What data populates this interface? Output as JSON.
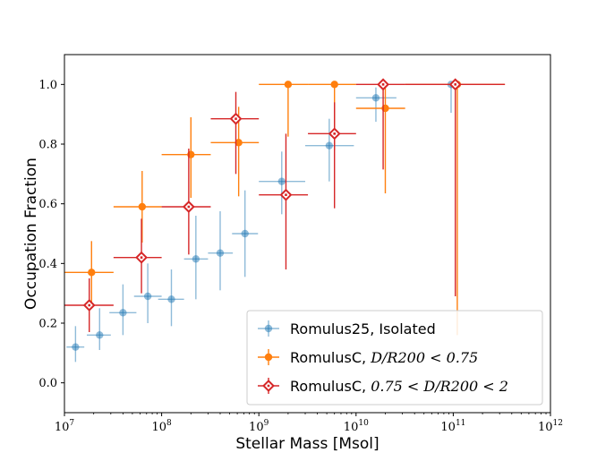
{
  "chart_data": {
    "type": "scatter",
    "title": "",
    "xlabel": "Stellar Mass [Msol]",
    "ylabel": "Occupation Fraction",
    "xscale": "log",
    "xlim": [
      10000000,
      1000000000000
    ],
    "ylim": [
      -0.1,
      1.1
    ],
    "x_ticks": [
      {
        "base": "10",
        "exp": "7",
        "value": 10000000
      },
      {
        "base": "10",
        "exp": "8",
        "value": 100000000
      },
      {
        "base": "10",
        "exp": "9",
        "value": 1000000000
      },
      {
        "base": "10",
        "exp": "10",
        "value": 10000000000
      },
      {
        "base": "10",
        "exp": "11",
        "value": 100000000000
      },
      {
        "base": "10",
        "exp": "12",
        "value": 1000000000000
      }
    ],
    "y_ticks": [
      {
        "label": "0.0",
        "value": 0.0
      },
      {
        "label": "0.2",
        "value": 0.2
      },
      {
        "label": "0.4",
        "value": 0.4
      },
      {
        "label": "0.6",
        "value": 0.6
      },
      {
        "label": "0.8",
        "value": 0.8
      },
      {
        "label": "1.0",
        "value": 1.0
      }
    ],
    "legend_position": "lower-right",
    "series": [
      {
        "name": "Romulus25, Isolated",
        "legend_text": "Romulus25, Isolated",
        "legend_math": "",
        "color": "#1f77b4",
        "marker": "circle",
        "marker_alpha": 0.5,
        "points": [
          {
            "x": 13000000,
            "y": 0.12,
            "xlo": 10500000,
            "xhi": 16000000,
            "ylo": 0.07,
            "yhi": 0.19
          },
          {
            "x": 23000000,
            "y": 0.16,
            "xlo": 17000000,
            "xhi": 30000000,
            "ylo": 0.11,
            "yhi": 0.25
          },
          {
            "x": 40000000,
            "y": 0.235,
            "xlo": 29000000,
            "xhi": 55000000,
            "ylo": 0.16,
            "yhi": 0.33
          },
          {
            "x": 72000000,
            "y": 0.29,
            "xlo": 52000000,
            "xhi": 100000000,
            "ylo": 0.2,
            "yhi": 0.4
          },
          {
            "x": 126000000,
            "y": 0.28,
            "xlo": 92000000,
            "xhi": 170000000,
            "ylo": 0.19,
            "yhi": 0.38
          },
          {
            "x": 225000000,
            "y": 0.415,
            "xlo": 170000000,
            "xhi": 300000000,
            "ylo": 0.28,
            "yhi": 0.56
          },
          {
            "x": 400000000,
            "y": 0.435,
            "xlo": 300000000,
            "xhi": 540000000,
            "ylo": 0.31,
            "yhi": 0.575
          },
          {
            "x": 720000000,
            "y": 0.5,
            "xlo": 530000000,
            "xhi": 980000000,
            "ylo": 0.355,
            "yhi": 0.645
          },
          {
            "x": 1720000000,
            "y": 0.675,
            "xlo": 1000000000,
            "xhi": 3000000000,
            "ylo": 0.565,
            "yhi": 0.775
          },
          {
            "x": 5300000000,
            "y": 0.795,
            "xlo": 3000000000,
            "xhi": 9500000000,
            "ylo": 0.675,
            "yhi": 0.885
          },
          {
            "x": 16000000000,
            "y": 0.955,
            "xlo": 10000000000,
            "xhi": 26000000000,
            "ylo": 0.875,
            "yhi": 0.99
          },
          {
            "x": 95000000000,
            "y": 1.0,
            "xlo": 90000000000,
            "xhi": 100000000000,
            "ylo": 0.905,
            "yhi": 1.0
          }
        ]
      },
      {
        "name": "RomulusC, D/R200 < 0.75",
        "legend_text": "RomulusC, ",
        "legend_math": "D/R200 < 0.75",
        "color": "#ff7f0e",
        "marker": "circle",
        "marker_alpha": 1.0,
        "points": [
          {
            "x": 19000000,
            "y": 0.37,
            "xlo": 10000000,
            "xhi": 32000000,
            "ylo": 0.27,
            "yhi": 0.475
          },
          {
            "x": 63000000,
            "y": 0.59,
            "xlo": 32000000,
            "xhi": 100000000,
            "ylo": 0.47,
            "yhi": 0.71
          },
          {
            "x": 200000000,
            "y": 0.765,
            "xlo": 100000000,
            "xhi": 320000000,
            "ylo": 0.62,
            "yhi": 0.89
          },
          {
            "x": 620000000,
            "y": 0.805,
            "xlo": 320000000,
            "xhi": 1000000000,
            "ylo": 0.625,
            "yhi": 0.925
          },
          {
            "x": 2000000000,
            "y": 1.0,
            "xlo": 1000000000,
            "xhi": 3200000000,
            "ylo": 0.825,
            "yhi": 1.0
          },
          {
            "x": 6000000000,
            "y": 1.0,
            "xlo": 3200000000,
            "xhi": 10000000000,
            "ylo": 0.78,
            "yhi": 1.0
          },
          {
            "x": 20000000000,
            "y": 0.92,
            "xlo": 10000000000,
            "xhi": 32000000000,
            "ylo": 0.635,
            "yhi": 0.99
          },
          {
            "x": 110000000000,
            "y": 1.0,
            "xlo": 32000000000,
            "xhi": 340000000000,
            "ylo": 0.16,
            "yhi": 1.0
          }
        ]
      },
      {
        "name": "RomulusC, 0.75 < D/R200 < 2",
        "legend_text": "RomulusC, ",
        "legend_math": "0.75 < D/R200 < 2",
        "color": "#d62728",
        "marker": "diamond",
        "marker_alpha": 1.0,
        "points": [
          {
            "x": 18000000,
            "y": 0.26,
            "xlo": 10000000,
            "xhi": 32000000,
            "ylo": 0.17,
            "yhi": 0.35
          },
          {
            "x": 62000000,
            "y": 0.42,
            "xlo": 32000000,
            "xhi": 100000000,
            "ylo": 0.3,
            "yhi": 0.55
          },
          {
            "x": 190000000,
            "y": 0.59,
            "xlo": 100000000,
            "xhi": 320000000,
            "ylo": 0.43,
            "yhi": 0.785
          },
          {
            "x": 580000000,
            "y": 0.885,
            "xlo": 320000000,
            "xhi": 1000000000,
            "ylo": 0.7,
            "yhi": 0.975
          },
          {
            "x": 1900000000,
            "y": 0.63,
            "xlo": 1000000000,
            "xhi": 3200000000,
            "ylo": 0.38,
            "yhi": 0.835
          },
          {
            "x": 6000000000,
            "y": 0.835,
            "xlo": 3200000000,
            "xhi": 10000000000,
            "ylo": 0.585,
            "yhi": 0.94
          },
          {
            "x": 19000000000,
            "y": 1.0,
            "xlo": 10000000000,
            "xhi": 32000000000,
            "ylo": 0.715,
            "yhi": 1.0
          },
          {
            "x": 105000000000,
            "y": 1.0,
            "xlo": 32000000000,
            "xhi": 340000000000,
            "ylo": 0.29,
            "yhi": 1.0
          }
        ]
      }
    ]
  }
}
